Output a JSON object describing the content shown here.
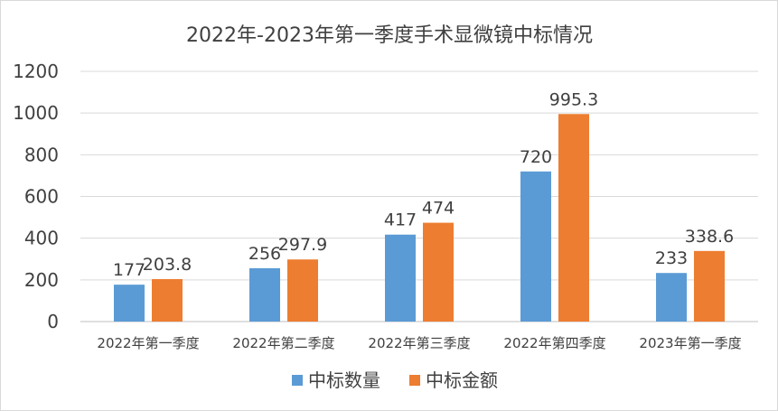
{
  "chart_data": {
    "type": "bar",
    "title": "2022年-2023年第一季度手术显微镜中标情况",
    "categories": [
      "2022年第一季度",
      "2022年第二季度",
      "2022年第三季度",
      "2022年第四季度",
      "2023年第一季度"
    ],
    "series": [
      {
        "name": "中标数量",
        "values": [
          177,
          256,
          417,
          720,
          233
        ],
        "labels": [
          "177",
          "256",
          "417",
          "720",
          "233"
        ],
        "color": "#5b9bd5"
      },
      {
        "name": "中标金额",
        "values": [
          203.8,
          297.9,
          474,
          995.3,
          338.6
        ],
        "labels": [
          "203.8",
          "297.9",
          "474",
          "995.3",
          "338.6"
        ],
        "color": "#ed7d31"
      }
    ],
    "ylim": [
      0,
      1200
    ],
    "yticks": [
      "0",
      "200",
      "400",
      "600",
      "800",
      "1000",
      "1200"
    ],
    "grid": true,
    "legend": "bottom"
  }
}
